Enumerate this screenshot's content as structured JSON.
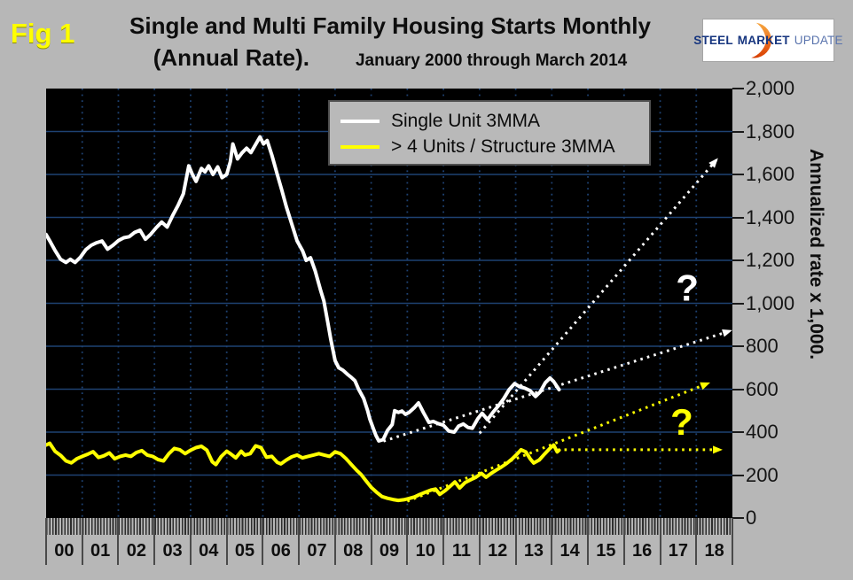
{
  "fig_label": "Fig 1",
  "header": {
    "title": "Single and Multi Family Housing Starts Monthly",
    "title2": "(Annual Rate).",
    "subtitle": "January 2000 through March 2014"
  },
  "logo": {
    "steel": "STEEL",
    "market": "MARKET",
    "update": "UPDATE"
  },
  "legend": [
    {
      "label": "Single Unit 3MMA",
      "color": "#ffffff"
    },
    {
      "label": "> 4 Units / Structure 3MMA",
      "color": "#ffff00"
    }
  ],
  "y_axis": {
    "title": "Annualized rate x 1,000.",
    "ticks": [
      "2,000",
      "1,800",
      "1,600",
      "1,400",
      "1,200",
      "1,000",
      "800",
      "600",
      "400",
      "200",
      "0"
    ],
    "max": 2000,
    "step": 200
  },
  "x_axis": {
    "labels": [
      "00",
      "01",
      "02",
      "03",
      "04",
      "05",
      "06",
      "07",
      "08",
      "09",
      "10",
      "11",
      "12",
      "13",
      "14",
      "15",
      "16",
      "17",
      "18"
    ]
  },
  "chart_data": {
    "type": "line",
    "title": "Single and Multi Family Housing Starts Monthly (Annual Rate). January 2000 through March 2014",
    "ylabel": "Annualized rate x 1,000.",
    "ylim": [
      0,
      2000
    ],
    "y_gridline_interval": 200,
    "x_years_shown": 19,
    "x_start_year": 2000,
    "grid_color": "#1e4273",
    "plot_background": "#000000",
    "series": [
      {
        "name": "Single Unit 3MMA",
        "color": "#ffffff",
        "points": [
          [
            0,
            1320
          ],
          [
            0.12,
            1285
          ],
          [
            0.25,
            1245
          ],
          [
            0.4,
            1205
          ],
          [
            0.55,
            1190
          ],
          [
            0.67,
            1205
          ],
          [
            0.8,
            1190
          ],
          [
            0.95,
            1215
          ],
          [
            1.1,
            1250
          ],
          [
            1.25,
            1270
          ],
          [
            1.4,
            1282
          ],
          [
            1.55,
            1290
          ],
          [
            1.7,
            1252
          ],
          [
            1.85,
            1270
          ],
          [
            2.0,
            1292
          ],
          [
            2.15,
            1305
          ],
          [
            2.3,
            1310
          ],
          [
            2.45,
            1330
          ],
          [
            2.6,
            1340
          ],
          [
            2.75,
            1298
          ],
          [
            2.9,
            1322
          ],
          [
            3.05,
            1352
          ],
          [
            3.2,
            1378
          ],
          [
            3.35,
            1355
          ],
          [
            3.5,
            1408
          ],
          [
            3.65,
            1455
          ],
          [
            3.8,
            1510
          ],
          [
            3.95,
            1640
          ],
          [
            4.05,
            1600
          ],
          [
            4.15,
            1568
          ],
          [
            4.3,
            1628
          ],
          [
            4.4,
            1612
          ],
          [
            4.5,
            1640
          ],
          [
            4.62,
            1600
          ],
          [
            4.75,
            1635
          ],
          [
            4.87,
            1585
          ],
          [
            5.0,
            1600
          ],
          [
            5.1,
            1660
          ],
          [
            5.17,
            1742
          ],
          [
            5.3,
            1672
          ],
          [
            5.42,
            1700
          ],
          [
            5.55,
            1722
          ],
          [
            5.67,
            1702
          ],
          [
            5.8,
            1740
          ],
          [
            5.92,
            1775
          ],
          [
            6.02,
            1742
          ],
          [
            6.12,
            1758
          ],
          [
            6.25,
            1690
          ],
          [
            6.4,
            1600
          ],
          [
            6.52,
            1530
          ],
          [
            6.65,
            1450
          ],
          [
            6.8,
            1370
          ],
          [
            6.95,
            1290
          ],
          [
            7.1,
            1245
          ],
          [
            7.2,
            1200
          ],
          [
            7.32,
            1212
          ],
          [
            7.45,
            1150
          ],
          [
            7.6,
            1060
          ],
          [
            7.69,
            1010
          ],
          [
            7.8,
            910
          ],
          [
            7.88,
            833
          ],
          [
            8.0,
            733
          ],
          [
            8.1,
            700
          ],
          [
            8.22,
            688
          ],
          [
            8.35,
            668
          ],
          [
            8.45,
            655
          ],
          [
            8.55,
            639
          ],
          [
            8.65,
            600
          ],
          [
            8.79,
            557
          ],
          [
            8.9,
            500
          ],
          [
            8.96,
            462
          ],
          [
            9.05,
            420
          ],
          [
            9.13,
            385
          ],
          [
            9.21,
            359
          ],
          [
            9.33,
            365
          ],
          [
            9.45,
            408
          ],
          [
            9.58,
            435
          ],
          [
            9.65,
            500
          ],
          [
            9.75,
            492
          ],
          [
            9.85,
            498
          ],
          [
            9.95,
            483
          ],
          [
            10.05,
            492
          ],
          [
            10.2,
            515
          ],
          [
            10.31,
            536
          ],
          [
            10.45,
            490
          ],
          [
            10.6,
            445
          ],
          [
            10.72,
            450
          ],
          [
            10.85,
            440
          ],
          [
            11.0,
            432
          ],
          [
            11.15,
            405
          ],
          [
            11.3,
            400
          ],
          [
            11.42,
            428
          ],
          [
            11.55,
            438
          ],
          [
            11.68,
            422
          ],
          [
            11.8,
            418
          ],
          [
            11.95,
            462
          ],
          [
            12.07,
            488
          ],
          [
            12.22,
            458
          ],
          [
            12.37,
            492
          ],
          [
            12.52,
            522
          ],
          [
            12.67,
            556
          ],
          [
            12.82,
            598
          ],
          [
            12.97,
            626
          ],
          [
            13.1,
            612
          ],
          [
            13.25,
            605
          ],
          [
            13.4,
            593
          ],
          [
            13.55,
            566
          ],
          [
            13.68,
            588
          ],
          [
            13.82,
            630
          ],
          [
            13.95,
            652
          ],
          [
            14.05,
            636
          ],
          [
            14.2,
            598
          ]
        ]
      },
      {
        "name": "> 4 Units / Structure 3MMA",
        "color": "#ffff00",
        "points": [
          [
            0,
            340
          ],
          [
            0.1,
            348
          ],
          [
            0.25,
            310
          ],
          [
            0.4,
            292
          ],
          [
            0.55,
            266
          ],
          [
            0.7,
            257
          ],
          [
            0.85,
            276
          ],
          [
            1.0,
            287
          ],
          [
            1.15,
            297
          ],
          [
            1.3,
            309
          ],
          [
            1.45,
            282
          ],
          [
            1.6,
            290
          ],
          [
            1.75,
            303
          ],
          [
            1.9,
            276
          ],
          [
            2.05,
            287
          ],
          [
            2.2,
            293
          ],
          [
            2.35,
            287
          ],
          [
            2.5,
            305
          ],
          [
            2.65,
            314
          ],
          [
            2.8,
            293
          ],
          [
            2.95,
            287
          ],
          [
            3.1,
            272
          ],
          [
            3.25,
            266
          ],
          [
            3.4,
            300
          ],
          [
            3.55,
            324
          ],
          [
            3.7,
            318
          ],
          [
            3.85,
            300
          ],
          [
            4.0,
            316
          ],
          [
            4.15,
            328
          ],
          [
            4.3,
            334
          ],
          [
            4.45,
            316
          ],
          [
            4.6,
            262
          ],
          [
            4.7,
            249
          ],
          [
            4.85,
            287
          ],
          [
            5.0,
            311
          ],
          [
            5.1,
            300
          ],
          [
            5.25,
            280
          ],
          [
            5.4,
            311
          ],
          [
            5.5,
            293
          ],
          [
            5.65,
            300
          ],
          [
            5.8,
            336
          ],
          [
            5.95,
            328
          ],
          [
            6.1,
            283
          ],
          [
            6.25,
            287
          ],
          [
            6.4,
            259
          ],
          [
            6.5,
            252
          ],
          [
            6.65,
            270
          ],
          [
            6.8,
            285
          ],
          [
            6.95,
            293
          ],
          [
            7.1,
            280
          ],
          [
            7.25,
            287
          ],
          [
            7.4,
            293
          ],
          [
            7.55,
            300
          ],
          [
            7.7,
            293
          ],
          [
            7.85,
            287
          ],
          [
            8.0,
            308
          ],
          [
            8.15,
            300
          ],
          [
            8.3,
            277
          ],
          [
            8.45,
            249
          ],
          [
            8.6,
            222
          ],
          [
            8.72,
            203
          ],
          [
            8.85,
            175
          ],
          [
            9.0,
            143
          ],
          [
            9.15,
            120
          ],
          [
            9.3,
            100
          ],
          [
            9.45,
            92
          ],
          [
            9.6,
            86
          ],
          [
            9.75,
            82
          ],
          [
            9.9,
            85
          ],
          [
            10.05,
            91
          ],
          [
            10.2,
            98
          ],
          [
            10.35,
            110
          ],
          [
            10.5,
            120
          ],
          [
            10.65,
            130
          ],
          [
            10.78,
            135
          ],
          [
            10.9,
            110
          ],
          [
            11.05,
            128
          ],
          [
            11.2,
            150
          ],
          [
            11.32,
            168
          ],
          [
            11.45,
            140
          ],
          [
            11.6,
            165
          ],
          [
            11.75,
            178
          ],
          [
            11.9,
            190
          ],
          [
            12.05,
            208
          ],
          [
            12.18,
            190
          ],
          [
            12.32,
            208
          ],
          [
            12.45,
            222
          ],
          [
            12.6,
            237
          ],
          [
            12.75,
            254
          ],
          [
            12.9,
            275
          ],
          [
            13.05,
            300
          ],
          [
            13.15,
            318
          ],
          [
            13.28,
            308
          ],
          [
            13.4,
            276
          ],
          [
            13.5,
            256
          ],
          [
            13.65,
            270
          ],
          [
            13.8,
            298
          ],
          [
            13.95,
            325
          ],
          [
            14.05,
            340
          ],
          [
            14.15,
            308
          ],
          [
            14.2,
            316
          ]
        ]
      }
    ],
    "projection_arrows": [
      {
        "name": "single-unit-shallow-projection",
        "color": "#ffffff",
        "from": [
          9.34,
          358
        ],
        "to": [
          18.95,
          872
        ]
      },
      {
        "name": "single-unit-steep-projection",
        "color": "#ffffff",
        "from": [
          12.0,
          395
        ],
        "to": [
          18.57,
          1670
        ]
      },
      {
        "name": "multi-unit-rising-projection",
        "color": "#ffff00",
        "from": [
          10.0,
          78
        ],
        "to": [
          18.34,
          628
        ]
      },
      {
        "name": "multi-unit-flat-projection",
        "color": "#ffff00",
        "from": [
          14.35,
          318
        ],
        "to": [
          18.68,
          318
        ]
      }
    ],
    "annotations": [
      {
        "text": "?",
        "color": "#ffffff",
        "t": 17.75,
        "v": 1070
      },
      {
        "text": "?",
        "color": "#ffff00",
        "t": 17.6,
        "v": 445
      }
    ]
  }
}
